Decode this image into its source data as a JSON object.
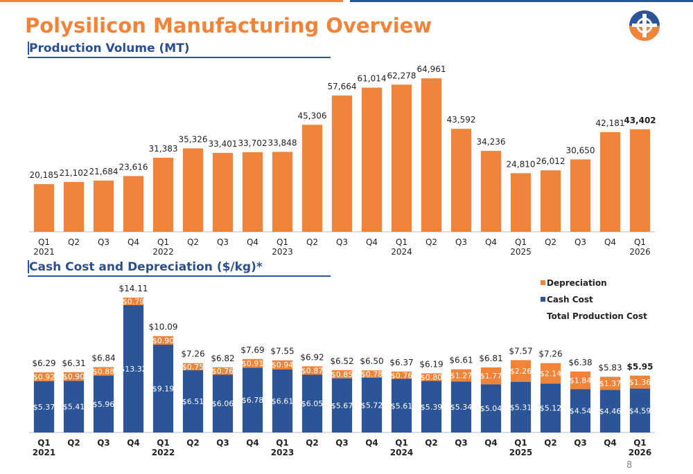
{
  "title": "Polysilicon Manufacturing Overview",
  "page_number": "8",
  "chart_data": [
    {
      "type": "bar",
      "title": "Production Volume (MT)",
      "categories": [
        "Q1\n2021",
        "Q2",
        "Q3",
        "Q4",
        "Q1\n2022",
        "Q2",
        "Q3",
        "Q4",
        "Q1\n2023",
        "Q2",
        "Q3",
        "Q4",
        "Q1\n2024",
        "Q2",
        "Q3",
        "Q4",
        "Q1\n2025",
        "Q2",
        "Q3",
        "Q4",
        "Q1\n2026"
      ],
      "values": [
        20185,
        21102,
        21684,
        23616,
        31383,
        35326,
        33401,
        33702,
        33848,
        45306,
        57664,
        61014,
        62278,
        64961,
        43592,
        34236,
        24810,
        26012,
        30650,
        42181,
        43402
      ],
      "value_labels": [
        "20,185",
        "21,102",
        "21,684",
        "23,616",
        "31,383",
        "35,326",
        "33,401",
        "33,702",
        "33,848",
        "45,306",
        "57,664",
        "61,014",
        "62,278",
        "64,961",
        "43,592",
        "34,236",
        "24,810",
        "26,012",
        "30,650",
        "42,181",
        "43,402"
      ],
      "color": "#f0843a",
      "ylim": [
        0,
        70000
      ],
      "grid": false,
      "highlight_last": true
    },
    {
      "type": "stacked_bar",
      "title": "Cash Cost and Depreciation ($/kg)*",
      "categories": [
        "Q1\n2021",
        "Q2",
        "Q3",
        "Q4",
        "Q1\n2022",
        "Q2",
        "Q3",
        "Q4",
        "Q1\n2023",
        "Q2",
        "Q3",
        "Q4",
        "Q1\n2024",
        "Q2",
        "Q3",
        "Q4",
        "Q1\n2025",
        "Q2",
        "Q3",
        "Q4",
        "Q1\n2026"
      ],
      "series": [
        {
          "name": "Cash Cost",
          "color": "#2b5597",
          "values": [
            5.37,
            5.41,
            5.96,
            13.32,
            9.19,
            6.51,
            6.06,
            6.78,
            6.61,
            6.05,
            5.67,
            5.72,
            5.61,
            5.39,
            5.34,
            5.04,
            5.31,
            5.12,
            4.54,
            4.46,
            4.59
          ],
          "value_labels": [
            "$5.37",
            "$5.41",
            "$5.96",
            "$13.32",
            "$9.19",
            "$6.51",
            "$6.06",
            "$6.78",
            "$6.61",
            "$6.05",
            "$5.67",
            "$5.72",
            "$5.61",
            "$5.39",
            "$5.34",
            "$5.04",
            "$5.31",
            "$5.12",
            "$4.54",
            "$4.46",
            "$4.59"
          ]
        },
        {
          "name": "Depreciation",
          "color": "#f0843a",
          "values": [
            0.92,
            0.9,
            0.88,
            0.79,
            0.9,
            0.75,
            0.76,
            0.91,
            0.94,
            0.87,
            0.85,
            0.78,
            0.76,
            0.8,
            1.27,
            1.77,
            2.26,
            2.14,
            1.84,
            1.37,
            1.36
          ],
          "value_labels": [
            "$0.92",
            "$0.90",
            "$0.88",
            "$0.79",
            "$0.90",
            "$0.75",
            "$0.76",
            "$0.91",
            "$0.94",
            "$0.87",
            "$0.85",
            "$0.78",
            "$0.76",
            "$0.80",
            "$1.27",
            "$1.77",
            "$2.26",
            "$2.14",
            "$1.84",
            "$1.37",
            "$1.36"
          ]
        }
      ],
      "totals": {
        "name": "Total Production Cost",
        "values": [
          6.29,
          6.31,
          6.84,
          14.11,
          10.09,
          7.26,
          6.82,
          7.69,
          7.55,
          6.92,
          6.52,
          6.5,
          6.37,
          6.19,
          6.61,
          6.81,
          7.57,
          7.26,
          6.38,
          5.83,
          5.95
        ],
        "value_labels": [
          "$6.29",
          "$6.31",
          "$6.84",
          "$14.11",
          "$10.09",
          "$7.26",
          "$6.82",
          "$7.69",
          "$7.55",
          "$6.92",
          "$6.52",
          "$6.50",
          "$6.37",
          "$6.19",
          "$6.61",
          "$6.81",
          "$7.57",
          "$7.26",
          "$6.38",
          "$5.83",
          "$5.95"
        ]
      },
      "ylim": [
        0,
        16
      ],
      "grid": false,
      "legend": "upper right",
      "highlight_last": true
    }
  ]
}
